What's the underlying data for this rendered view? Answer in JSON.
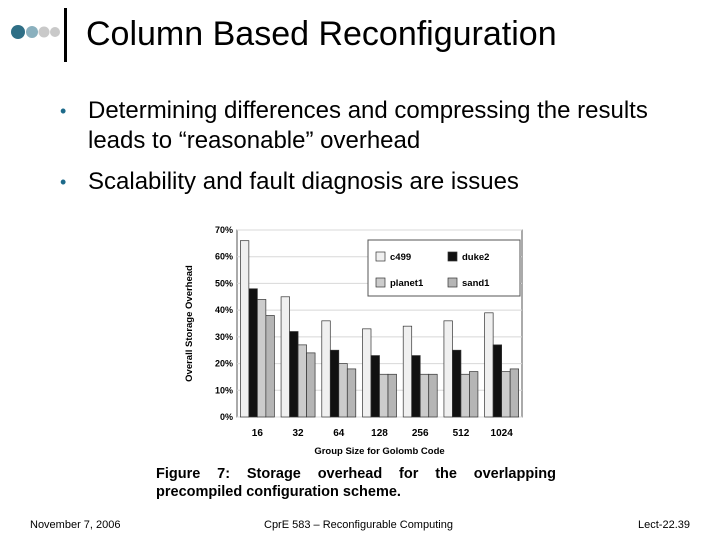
{
  "slide": {
    "title": "Column Based Reconfiguration",
    "bullets": [
      "Determining differences and compressing the results leads to “reasonable” overhead",
      "Scalability and fault diagnosis are issues"
    ],
    "caption_line1": [
      "Figure",
      "7:",
      "Storage",
      "overhead",
      "for",
      "the",
      "overlapping"
    ],
    "caption_line2": "precompiled configuration scheme.",
    "footer": {
      "date": "November 7, 2006",
      "course": "CprE 583 – Reconfigurable Computing",
      "lecture": "Lect-22.39"
    },
    "colors": {
      "accent_dots": [
        "#2f6f86",
        "#8ab0be",
        "#c9c9c9",
        "#c9c9c9"
      ]
    }
  },
  "chart_data": {
    "type": "bar",
    "categories": [
      "16",
      "32",
      "64",
      "128",
      "256",
      "512",
      "1024"
    ],
    "series": [
      {
        "name": "c499",
        "values": [
          66,
          45,
          36,
          33,
          34,
          36,
          39
        ],
        "color": "#f0f0f0"
      },
      {
        "name": "duke2",
        "values": [
          48,
          32,
          25,
          23,
          23,
          25,
          27
        ],
        "color": "#111111"
      },
      {
        "name": "planet1",
        "values": [
          44,
          27,
          20,
          16,
          16,
          16,
          17
        ],
        "color": "#cccccc"
      },
      {
        "name": "sand1",
        "values": [
          38,
          24,
          18,
          16,
          16,
          17,
          18
        ],
        "color": "#b5b5b5"
      }
    ],
    "xlabel": "Group Size for Golomb Code",
    "ylabel": "Overall Storage Overhead",
    "ylim": [
      0,
      70
    ],
    "yticks": [
      "0%",
      "10%",
      "20%",
      "30%",
      "40%",
      "50%",
      "60%",
      "70%"
    ],
    "legend": "top-right",
    "grid": true
  }
}
